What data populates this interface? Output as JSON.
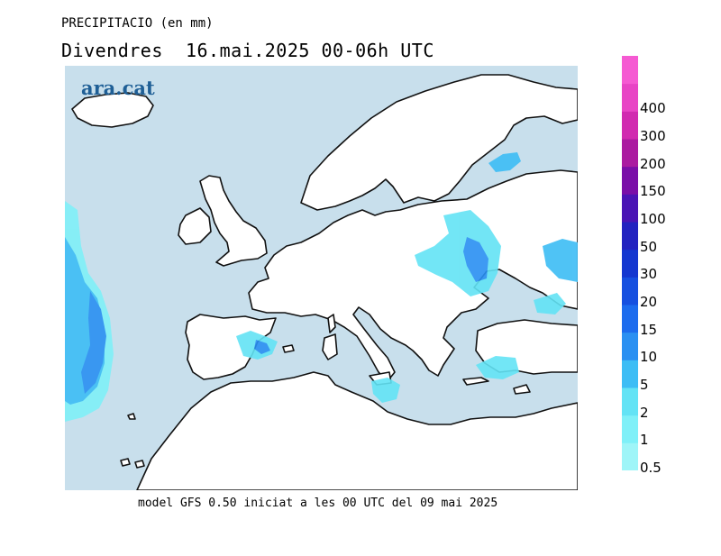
{
  "header": {
    "title": "PRECIPITACIO (en mm)",
    "subtitle": "Divendres  16.mai.2025 00-06h UTC"
  },
  "logo": {
    "text": "ara.cat"
  },
  "footer": {
    "text": "model GFS 0.50 iniciat a les 00 UTC del 09 mai 2025"
  },
  "colors": {
    "sea": "#c8dfec",
    "land": "#ffffff",
    "coast": "#000000"
  },
  "legend": {
    "levels": [
      {
        "label": "0.5",
        "color": "#9ef5f8"
      },
      {
        "label": "1",
        "color": "#7ff0f8"
      },
      {
        "label": "2",
        "color": "#63e3f5"
      },
      {
        "label": "5",
        "color": "#3dbdf5"
      },
      {
        "label": "10",
        "color": "#2a90f2"
      },
      {
        "label": "15",
        "color": "#1c6cee"
      },
      {
        "label": "20",
        "color": "#1650e0"
      },
      {
        "label": "30",
        "color": "#1437d0"
      },
      {
        "label": "50",
        "color": "#2222c0"
      },
      {
        "label": "100",
        "color": "#4a14b5"
      },
      {
        "label": "150",
        "color": "#7a0ea8"
      },
      {
        "label": "200",
        "color": "#ab1aa0"
      },
      {
        "label": "300",
        "color": "#d12ab0"
      },
      {
        "label": "400",
        "color": "#e845c5"
      },
      {
        "label": "",
        "color": "#f55ad2"
      }
    ]
  }
}
